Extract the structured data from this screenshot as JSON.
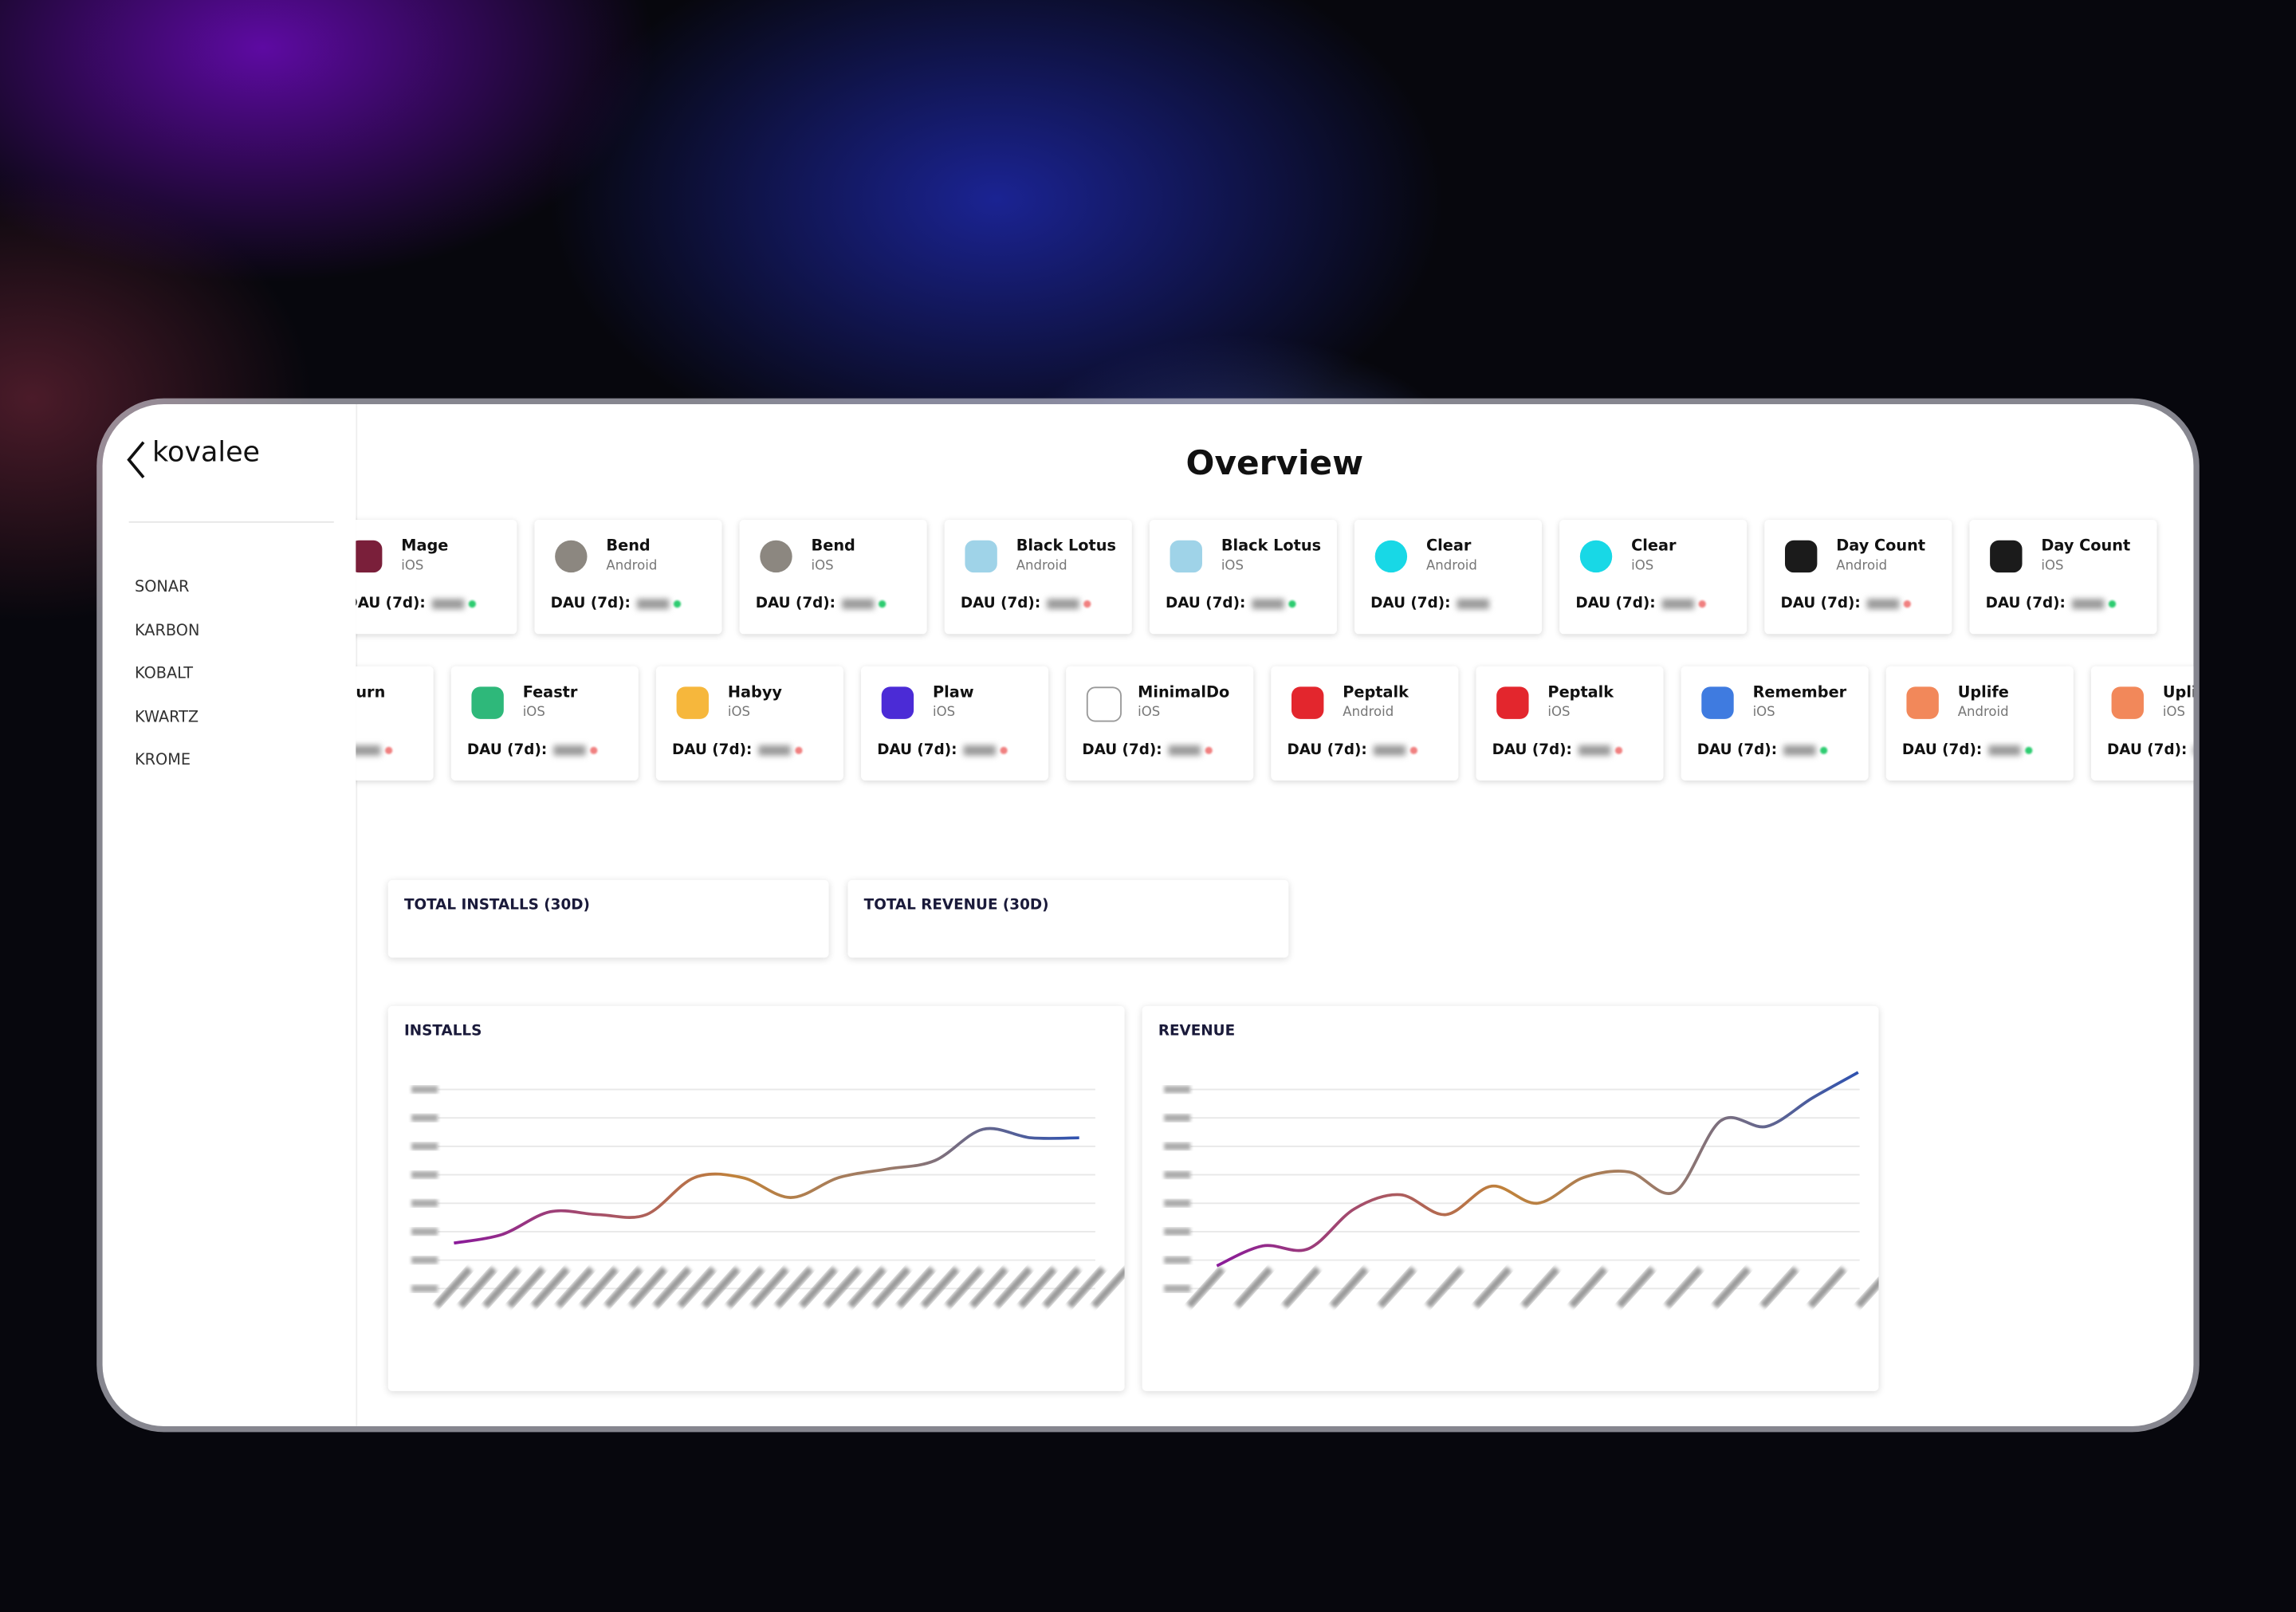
{
  "sidebar": {
    "logo": "kovalee",
    "nav": [
      "SONAR",
      "KARBON",
      "KOBALT",
      "KWARTZ",
      "KROME"
    ]
  },
  "header": {
    "title": "Overview"
  },
  "dau_label": "DAU (7d):",
  "app_rows": [
    [
      {
        "name": "Mage",
        "platform": "iOS",
        "icon": "#7a1f3a",
        "trend": "#2ecc71"
      },
      {
        "name": "Bend",
        "platform": "Android",
        "icon": "#8c8780",
        "trend": "#2ecc71"
      },
      {
        "name": "Bend",
        "platform": "iOS",
        "icon": "#8c8780",
        "trend": "#2ecc71"
      },
      {
        "name": "Black Lotus",
        "platform": "Android",
        "icon": "#9fd3e8",
        "trend": "#f08080"
      },
      {
        "name": "Black Lotus",
        "platform": "iOS",
        "icon": "#9fd3e8",
        "trend": "#2ecc71"
      },
      {
        "name": "Clear",
        "platform": "Android",
        "icon": "#18d8e6",
        "trend": "#ffffff"
      },
      {
        "name": "Clear",
        "platform": "iOS",
        "icon": "#18d8e6",
        "trend": "#f08080"
      },
      {
        "name": "Day Count",
        "platform": "Android",
        "icon": "#1b1b1b",
        "trend": "#f08080"
      },
      {
        "name": "Day Count",
        "platform": "iOS",
        "icon": "#1b1b1b",
        "trend": "#2ecc71"
      }
    ],
    [
      {
        "name": "urn",
        "platform": "",
        "icon": "",
        "trend": "#f08080"
      },
      {
        "name": "Feastr",
        "platform": "iOS",
        "icon": "#2eb87a",
        "trend": "#f08080"
      },
      {
        "name": "Habyy",
        "platform": "iOS",
        "icon": "#f6b73c",
        "trend": "#f08080"
      },
      {
        "name": "Plaw",
        "platform": "iOS",
        "icon": "#4b2bd6",
        "trend": "#f08080"
      },
      {
        "name": "MinimalDo",
        "platform": "iOS",
        "icon": "#ffffff",
        "trend": "#f08080"
      },
      {
        "name": "Peptalk",
        "platform": "Android",
        "icon": "#e3262d",
        "trend": "#f08080"
      },
      {
        "name": "Peptalk",
        "platform": "iOS",
        "icon": "#e3262d",
        "trend": "#f08080"
      },
      {
        "name": "Remember",
        "platform": "iOS",
        "icon": "#3f7be0",
        "trend": "#2ecc71"
      },
      {
        "name": "Uplife",
        "platform": "Android",
        "icon": "#f2885a",
        "trend": "#2ecc71"
      },
      {
        "name": "Uplife",
        "platform": "iOS",
        "icon": "#f2885a",
        "trend": "#2ecc71"
      }
    ]
  ],
  "kpis": [
    "TOTAL INSTALLS (30D)",
    "TOTAL REVENUE (30D)"
  ],
  "charts": [
    {
      "type": "line",
      "title": "INSTALLS",
      "ylim": [
        0,
        7
      ],
      "values": [
        1.6,
        1.9,
        2.7,
        2.6,
        2.6,
        3.9,
        3.9,
        3.2,
        3.9,
        4.2,
        4.5,
        5.6,
        5.3,
        5.3
      ]
    },
    {
      "type": "line",
      "title": "REVENUE",
      "ylim": [
        0,
        7
      ],
      "values": [
        0.8,
        1.5,
        1.4,
        2.8,
        3.3,
        2.6,
        3.6,
        3.0,
        3.9,
        4.1,
        3.4,
        5.9,
        5.7,
        6.7,
        7.6
      ]
    }
  ]
}
